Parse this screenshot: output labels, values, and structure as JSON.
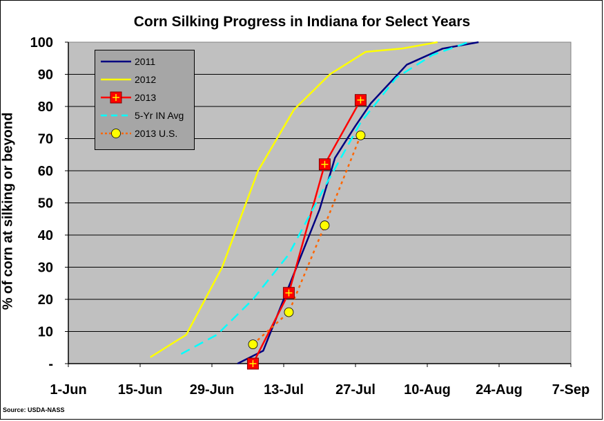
{
  "chart_data": {
    "type": "line",
    "title": "Corn Silking Progress in Indiana for Select Years",
    "xlabel": "",
    "ylabel": "% of corn at silking or beyond",
    "source": "Source: USDA-NASS",
    "ylim": [
      0,
      100
    ],
    "y_ticks": [
      {
        "value": 0,
        "label": "-"
      },
      {
        "value": 10,
        "label": "10"
      },
      {
        "value": 20,
        "label": "20"
      },
      {
        "value": 30,
        "label": "30"
      },
      {
        "value": 40,
        "label": "40"
      },
      {
        "value": 50,
        "label": "50"
      },
      {
        "value": 60,
        "label": "60"
      },
      {
        "value": 70,
        "label": "70"
      },
      {
        "value": 80,
        "label": "80"
      },
      {
        "value": 90,
        "label": "90"
      },
      {
        "value": 100,
        "label": "100"
      }
    ],
    "x_unit": "days since 1-Jun",
    "xlim": [
      0,
      98
    ],
    "x_ticks": [
      {
        "value": 0,
        "label": "1-Jun"
      },
      {
        "value": 14,
        "label": "15-Jun"
      },
      {
        "value": 28,
        "label": "29-Jun"
      },
      {
        "value": 42,
        "label": "13-Jul"
      },
      {
        "value": 56,
        "label": "27-Jul"
      },
      {
        "value": 70,
        "label": "10-Aug"
      },
      {
        "value": 84,
        "label": "24-Aug"
      },
      {
        "value": 98,
        "label": "7-Sep"
      }
    ],
    "grid": true,
    "legend_position": "top-left",
    "colors": {
      "plot_bg": "#c0c0c0",
      "gridline": "#000000"
    },
    "series": [
      {
        "name": "2011",
        "color": "#000080",
        "style": "solid",
        "marker": "none",
        "points": [
          [
            33,
            0
          ],
          [
            38,
            4
          ],
          [
            42,
            20
          ],
          [
            49,
            48
          ],
          [
            52,
            64
          ],
          [
            56,
            74
          ],
          [
            59,
            81
          ],
          [
            66,
            93
          ],
          [
            73,
            98
          ],
          [
            80,
            100
          ]
        ]
      },
      {
        "name": "2012",
        "color": "#ffff00",
        "style": "solid",
        "marker": "none",
        "points": [
          [
            16,
            2
          ],
          [
            23,
            9
          ],
          [
            30,
            30
          ],
          [
            37,
            60
          ],
          [
            44,
            79
          ],
          [
            51,
            90
          ],
          [
            58,
            97
          ],
          [
            65,
            98
          ],
          [
            72,
            100
          ]
        ]
      },
      {
        "name": "2013",
        "color": "#ff0000",
        "style": "solid",
        "marker": "plus-square",
        "points": [
          [
            36,
            0
          ],
          [
            43,
            22
          ],
          [
            50,
            62
          ],
          [
            57,
            82
          ]
        ]
      },
      {
        "name": "5-Yr IN Avg",
        "color": "#00ffff",
        "style": "dashed",
        "marker": "none",
        "points": [
          [
            22,
            3
          ],
          [
            29,
            9
          ],
          [
            36,
            20
          ],
          [
            43,
            34
          ],
          [
            50,
            55
          ],
          [
            57,
            75
          ],
          [
            64,
            89
          ],
          [
            71,
            96
          ],
          [
            78,
            100
          ]
        ]
      },
      {
        "name": "2013 U.S.",
        "color": "#ff6600",
        "style": "dotted",
        "marker": "circle",
        "marker_color": "#ffff00",
        "points": [
          [
            36,
            6
          ],
          [
            43,
            16
          ],
          [
            50,
            43
          ],
          [
            57,
            71
          ]
        ]
      }
    ]
  }
}
